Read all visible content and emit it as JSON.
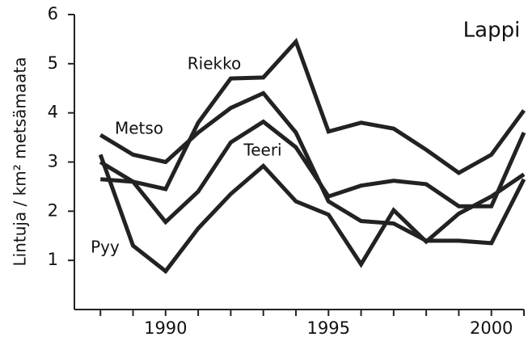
{
  "chart_data": {
    "type": "line",
    "title": "Lappi",
    "ylabel": "Lintuja / km² metsämaata",
    "x": [
      1988,
      1989,
      1990,
      1991,
      1992,
      1993,
      1994,
      1995,
      1996,
      1997,
      1998,
      1999,
      2000,
      2001
    ],
    "series": [
      {
        "name": "Riekko",
        "color": "#222222",
        "values": [
          2.65,
          2.6,
          2.45,
          3.8,
          4.7,
          4.72,
          5.45,
          3.62,
          3.8,
          3.68,
          3.25,
          2.78,
          3.15,
          4.05
        ]
      },
      {
        "name": "Metso",
        "color": "#222222",
        "values": [
          3.55,
          3.15,
          3.0,
          3.6,
          4.1,
          4.4,
          3.6,
          2.2,
          1.8,
          1.75,
          1.4,
          1.4,
          1.35,
          2.65
        ]
      },
      {
        "name": "Teeri",
        "color": "#222222",
        "values": [
          3.0,
          2.6,
          1.78,
          2.4,
          3.4,
          3.82,
          3.3,
          2.3,
          2.52,
          2.62,
          2.55,
          2.1,
          2.1,
          3.6
        ]
      },
      {
        "name": "Pyy",
        "color": "#222222",
        "values": [
          3.15,
          1.3,
          0.78,
          1.65,
          2.35,
          2.92,
          2.2,
          1.93,
          0.92,
          2.02,
          1.38,
          1.95,
          2.3,
          2.75
        ]
      }
    ],
    "xlim": [
      1987.2,
      2001
    ],
    "xticks": [
      1990,
      1995,
      2000
    ],
    "xminorticks": [
      1988,
      1989,
      1990,
      1991,
      1992,
      1993,
      1994,
      1995,
      1996,
      1997,
      1998,
      1999,
      2000,
      2001
    ],
    "ylim": [
      0,
      6
    ],
    "yticks": [
      1,
      2,
      3,
      4,
      5,
      6
    ]
  }
}
